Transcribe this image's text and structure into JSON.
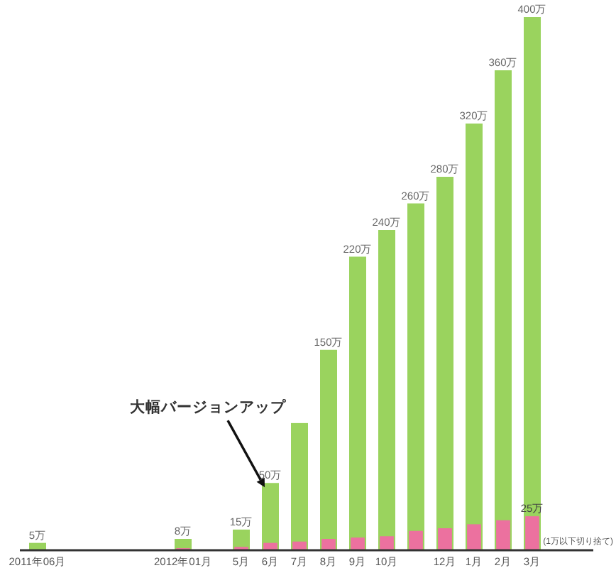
{
  "chart_data": {
    "type": "bar",
    "categories": [
      "2011年06月",
      null,
      null,
      null,
      null,
      "2012年01月",
      null,
      "5月",
      "6月",
      "7月",
      "8月",
      "9月",
      "10月",
      null,
      "12月",
      "1月",
      "2月",
      "3月"
    ],
    "series": [
      {
        "color": "#9ad35e",
        "values": [
          5,
          null,
          null,
          null,
          null,
          8,
          null,
          15,
          50,
          95,
          150,
          220,
          240,
          260,
          280,
          320,
          360,
          400
        ],
        "value_labels": [
          "5万",
          null,
          null,
          null,
          null,
          "8万",
          null,
          "15万",
          "50万",
          null,
          "150万",
          "220万",
          "240万",
          "260万",
          "280万",
          "320万",
          "360万",
          "400万"
        ]
      },
      {
        "color": "#ec719f",
        "values": [
          null,
          null,
          null,
          null,
          null,
          1,
          null,
          2,
          5,
          6,
          8,
          9,
          10,
          14,
          16,
          19,
          22,
          25
        ],
        "value_labels": [
          null,
          null,
          null,
          null,
          null,
          null,
          null,
          null,
          null,
          null,
          null,
          null,
          null,
          null,
          null,
          null,
          null,
          "25万"
        ]
      }
    ],
    "tick_labels": "x",
    "annotations": [
      {
        "text": "大幅バージョンアップ",
        "x": "6月",
        "y": 50
      },
      "(1万以下切り捨て)"
    ]
  }
}
